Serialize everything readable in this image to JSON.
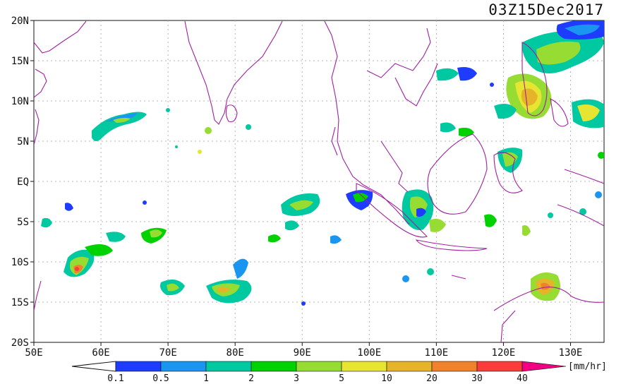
{
  "title": "03Z15Dec2017",
  "lat_labels": [
    "20N",
    "15N",
    "10N",
    "5N",
    "EQ",
    "5S",
    "10S",
    "15S",
    "20S"
  ],
  "lon_labels": [
    "50E",
    "60E",
    "70E",
    "80E",
    "90E",
    "100E",
    "110E",
    "120E",
    "130E"
  ],
  "colorbar": {
    "unit": "[mm/hr]",
    "labels": [
      "0.1",
      "0.5",
      "1",
      "2",
      "3",
      "5",
      "10",
      "20",
      "30",
      "40"
    ],
    "colors": [
      "#1e3cff",
      "#1a96f0",
      "#00c8a0",
      "#00d200",
      "#96dc32",
      "#e6e632",
      "#e6b428",
      "#f0822d",
      "#fa3c3c",
      "#f00082"
    ]
  },
  "colors": {
    "coast": "#a020a0",
    "grid": "#b4b4b4"
  }
}
